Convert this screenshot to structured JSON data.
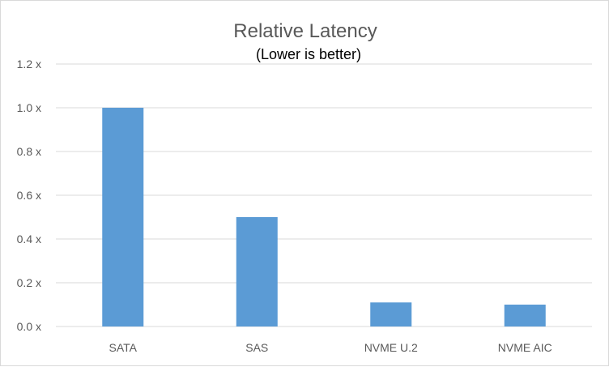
{
  "chart_data": {
    "type": "bar",
    "title": "Relative Latency",
    "subtitle": "(Lower is better)",
    "categories": [
      "SATA",
      "SAS",
      "NVME U.2",
      "NVME AIC"
    ],
    "values": [
      1.0,
      0.5,
      0.11,
      0.1
    ],
    "ylim": [
      0,
      1.2
    ],
    "yticks": [
      0,
      0.2,
      0.4,
      0.6,
      0.8,
      1.0,
      1.2
    ],
    "ytick_labels": [
      "0.0 x",
      "0.2 x",
      "0.4 x",
      "0.6 x",
      "0.8 x",
      "1.0 x",
      "1.2 x"
    ],
    "grid": true,
    "legend": "none",
    "bar_color": "#5b9bd5",
    "gridline_color": "#d9d9d9"
  }
}
